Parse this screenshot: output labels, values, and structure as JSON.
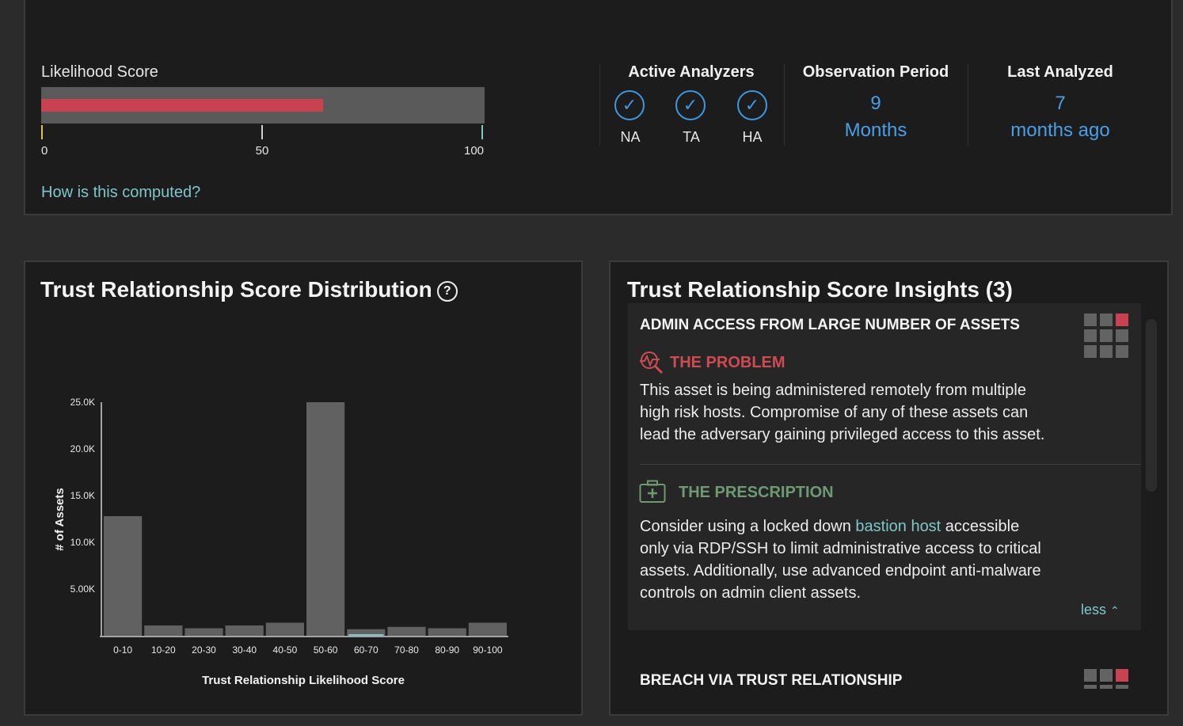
{
  "likelihood": {
    "title": "Likelihood Score",
    "score_fraction": 0.636,
    "ticks": [
      "0",
      "50",
      "100"
    ],
    "link": "How is this computed?"
  },
  "analyzers": {
    "title": "Active Analyzers",
    "items": [
      "NA",
      "TA",
      "HA"
    ],
    "check_glyph": "✓"
  },
  "observation": {
    "title": "Observation Period",
    "value": "9",
    "unit": "Months"
  },
  "last_analyzed": {
    "title": "Last Analyzed",
    "value": "7",
    "unit": "months ago"
  },
  "distribution": {
    "title": "Trust Relationship Score Distribution",
    "help_glyph": "?"
  },
  "chart_data": {
    "type": "bar",
    "categories": [
      "0-10",
      "10-20",
      "20-30",
      "30-40",
      "40-50",
      "50-60",
      "60-70",
      "70-80",
      "80-90",
      "90-100"
    ],
    "values": [
      12800,
      1100,
      800,
      1100,
      1400,
      25000,
      700,
      950,
      800,
      1400
    ],
    "y_ticks": [
      5000,
      10000,
      15000,
      20000,
      25000
    ],
    "y_tick_labels": [
      "5.00K",
      "10.0K",
      "15.0K",
      "20.0K",
      "25.0K"
    ],
    "xlabel": "Trust Relationship Likelihood Score",
    "ylabel": "# of Assets",
    "ylim": [
      0,
      25000
    ],
    "bar_color": "#616162",
    "highlight_category": "60-70"
  },
  "insights": {
    "title": "Trust Relationship Score Insights (3)",
    "cards": [
      {
        "title": "ADMIN ACCESS FROM LARGE NUMBER OF ASSETS",
        "problem_heading": "THE PROBLEM",
        "problem_text": "This asset is being administered remotely from multiple high risk hosts. Compromise of any of these assets can lead the adversary gaining privileged access to this asset.",
        "prescription_heading": "THE PRESCRIPTION",
        "prescription_before": "Consider using a locked down ",
        "prescription_link": "bastion host",
        "prescription_after": " accessible only via RDP/SSH to limit administrative access to critical assets. Additionally, use advanced endpoint anti-malware controls on admin client assets.",
        "less_label": "less",
        "less_glyph": "⌃"
      },
      {
        "title": "BREACH VIA TRUST RELATIONSHIP"
      }
    ],
    "colors": {
      "problem": "#d04a52",
      "prescription": "#6e9a73",
      "severity_on": "#c9424f"
    }
  }
}
